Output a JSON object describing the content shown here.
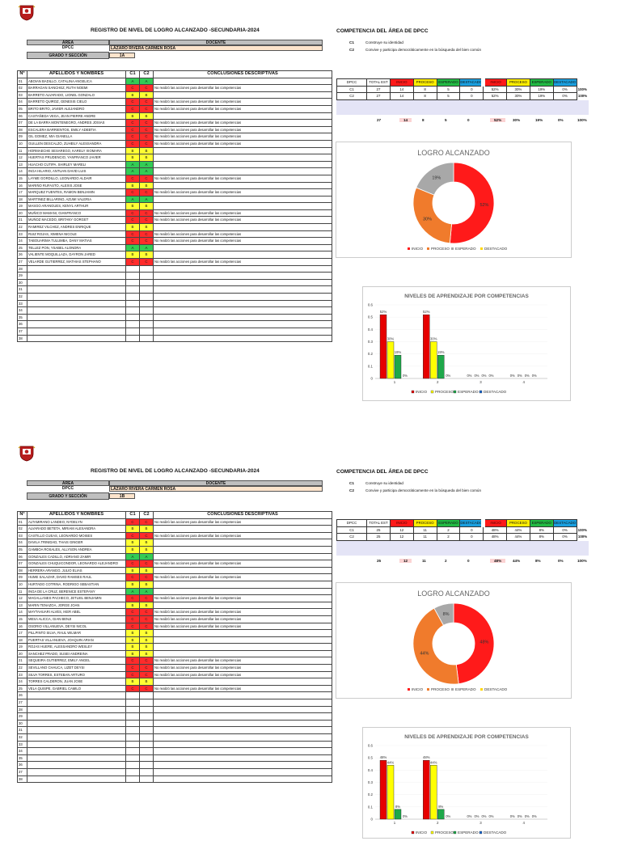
{
  "colors": {
    "inicio": "#ff1a1a",
    "proceso": "#f07b2c",
    "esperado": "#a8a8a8",
    "destacado": "#ffd700",
    "bar_inicio": "#e60000",
    "bar_proceso": "#ffff00",
    "bar_esperado": "#1ea84a",
    "bar_destacado": "#1a66cc"
  },
  "common": {
    "title": "REGISTRO DE NIVEL DE LOGRO ALCANZADO -SECUNDARIA-2024",
    "area_label": "ÁREA",
    "docente_label": "DOCENTE",
    "area_value": "DPCC",
    "docente_value": "LÁZARO RIVERA CARMEN ROSA",
    "grado_label": "GRADO Y SECCIÓN",
    "competencia_title": "COMPETENCIA DEL ÁREA DE DPCC",
    "competencias": [
      {
        "code": "C1",
        "desc": "Construye su identidad"
      },
      {
        "code": "C2",
        "desc": "Convive y participa democráticamente en la búsqueda del bien común"
      }
    ],
    "th": {
      "num": "N°",
      "nombres": "APELLIDOS Y NOMBRES",
      "c1": "C1",
      "c2": "C2",
      "conclusiones": "CONCLUSIONES DESCRIPTIVAS"
    },
    "sum_head": [
      "DPCC",
      "TOTAL EST",
      "INICIO",
      "PROCESO",
      "ESPERADO",
      "DESTACADO",
      "INICIO",
      "PROCESO",
      "ESPERADO",
      "DESTACADO"
    ],
    "donut_title": "LOGRO ALCANZADO",
    "legend": [
      "INICIO",
      "PROCESO",
      "ESPERADO",
      "DESTACADO"
    ],
    "bar_title": "NIVELES DE APRENDIZAJE POR COMPETENCIAS",
    "bar_yticks": [
      "0.6",
      "0.5",
      "0.4",
      "0.3",
      "0.2",
      "0.1",
      "0"
    ],
    "bar_xticks": [
      "1",
      "2",
      "3",
      "4"
    ]
  },
  "sections": [
    {
      "grado": "1A",
      "students": [
        {
          "n": "01",
          "name": "ABOIAN BADILLO, CATALINA ANGELICA",
          "c1": "A",
          "c2": "A",
          "concl": ""
        },
        {
          "n": "02",
          "name": "BARRAGAN SANCHEZ, RUTH NOEMI",
          "c1": "C",
          "c2": "C",
          "concl": "No realizó las acciones para desarrollar las competencias"
        },
        {
          "n": "03",
          "name": "BARRETO ALVARADO, LIONEL GONZALO",
          "c1": "B",
          "c2": "B",
          "concl": ""
        },
        {
          "n": "04",
          "name": "BARRETO QUIROZ, GENESIS CIELO",
          "c1": "C",
          "c2": "C",
          "concl": "No realizó las acciones para desarrollar las competencias"
        },
        {
          "n": "05",
          "name": "BRITO BRITO, JAVIER ALEJANDRO",
          "c1": "C",
          "c2": "C",
          "concl": "No realizó las acciones para desarrollar las competencias"
        },
        {
          "n": "06",
          "name": "CASTAÑEDA VEGA, JEAN PIERRE ANDRE",
          "c1": "B",
          "c2": "B",
          "concl": ""
        },
        {
          "n": "07",
          "name": "DE LA BARRA MONTENEGRO, ANDRES JOSIAS",
          "c1": "C",
          "c2": "C",
          "concl": "No realizó las acciones para desarrollar las competencias"
        },
        {
          "n": "08",
          "name": "ESCALERA BARRIENTOS, EMILY ADEBTIA",
          "c1": "C",
          "c2": "C",
          "concl": "No realizó las acciones para desarrollar las competencias"
        },
        {
          "n": "09",
          "name": "GIL GOMEZ, MIA GIANELLA",
          "c1": "C",
          "c2": "C",
          "concl": "No realizó las acciones para desarrollar las competencias"
        },
        {
          "n": "10",
          "name": "GUILLEN DESCALZO, ZUHEILY ALESSANDRA",
          "c1": "C",
          "c2": "C",
          "concl": "No realizó las acciones para desarrollar las competencias"
        },
        {
          "n": "11",
          "name": "HORMAECHE SESAREGO, KARELY XIOMARA",
          "c1": "B",
          "c2": "B",
          "concl": ""
        },
        {
          "n": "12",
          "name": "HUERTAS PRUDENCIO, YANFRANCO JAVIER",
          "c1": "B",
          "c2": "B",
          "concl": ""
        },
        {
          "n": "13",
          "name": "HUACHO CUTIPA, SHIRLEY MARELI",
          "c1": "A",
          "c2": "A",
          "concl": ""
        },
        {
          "n": "14",
          "name": "INGA HILARIO, ANTUAN DAVID LUIS",
          "c1": "A",
          "c2": "A",
          "concl": ""
        },
        {
          "n": "15",
          "name": "LAYME GORDILLO, LEONARDO ALDAIR",
          "c1": "C",
          "c2": "C",
          "concl": "No realizó las acciones para desarrollar las competencias"
        },
        {
          "n": "16",
          "name": "MARIÑO RUFASTO, ALEXIS JOSE",
          "c1": "B",
          "c2": "B",
          "concl": ""
        },
        {
          "n": "17",
          "name": "MARQUEZ FUENTES, RAMON BENJAMIN",
          "c1": "C",
          "c2": "C",
          "concl": "No realizó las acciones para desarrollar las competencias"
        },
        {
          "n": "18",
          "name": "MARTINEZ BILLARINO, AZUMI VALERIA",
          "c1": "A",
          "c2": "A",
          "concl": ""
        },
        {
          "n": "19",
          "name": "MASGO ARANGUES, KENYL ARTHUR",
          "c1": "B",
          "c2": "B",
          "concl": ""
        },
        {
          "n": "20",
          "name": "MUÑICO MAMANI, GIANFRANCO",
          "c1": "C",
          "c2": "C",
          "concl": "No realizó las acciones para desarrollar las competencias"
        },
        {
          "n": "21",
          "name": "MUÑOZ MACEDO, BRITANY GORGET",
          "c1": "C",
          "c2": "C",
          "concl": "No realizó las acciones para desarrollar las competencias"
        },
        {
          "n": "22",
          "name": "RAMIREZ VILCHEZ, ANDRES ENRIQUE",
          "c1": "B",
          "c2": "B",
          "concl": ""
        },
        {
          "n": "23",
          "name": "RUIZ ROJAS, XIMENA NICOLE",
          "c1": "C",
          "c2": "C",
          "concl": "No realizó las acciones para desarrollar las competencias"
        },
        {
          "n": "24",
          "name": "TABOUARIMA TULUMBA, DANY MATIAS",
          "c1": "C",
          "c2": "C",
          "concl": "No realizó las acciones para desarrollar las competencias"
        },
        {
          "n": "25",
          "name": "TELLEZ PON, YSABEL ALONDRA",
          "c1": "A",
          "c2": "A",
          "concl": ""
        },
        {
          "n": "26",
          "name": "VALIENTE MOQUILLAZA, DAYRON JARED",
          "c1": "B",
          "c2": "B",
          "concl": ""
        },
        {
          "n": "27",
          "name": "VELARDE GUTIERREZ, MATHIAS STEPHANO",
          "c1": "C",
          "c2": "C",
          "concl": "No realizó las acciones para desarrollar las competencias"
        }
      ],
      "empty_rows": [
        "28",
        "29",
        "30",
        "31",
        "32",
        "33",
        "34",
        "35",
        "36",
        "37",
        "38"
      ],
      "summary": [
        {
          "comp": "C1",
          "total": "27",
          "i": "14",
          "p": "8",
          "e": "5",
          "d": "0",
          "pi": "52%",
          "pp": "30%",
          "pe": "19%",
          "pd": "0%",
          "t": "100%"
        },
        {
          "comp": "C2",
          "total": "27",
          "i": "14",
          "p": "8",
          "e": "5",
          "d": "0",
          "pi": "52%",
          "pp": "30%",
          "pe": "19%",
          "pd": "0%",
          "t": "100%"
        }
      ],
      "totals": {
        "total": "27",
        "i": "14",
        "p": "8",
        "e": "5",
        "d": "0",
        "pi": "52%",
        "pp": "30%",
        "pe": "19%",
        "pd": "0%",
        "t": "100%"
      },
      "chart_data": [
        {
          "type": "pie",
          "title": "LOGRO ALCANZADO",
          "categories": [
            "INICIO",
            "PROCESO",
            "ESPERADO",
            "DESTACADO"
          ],
          "values": [
            52,
            30,
            19,
            0
          ],
          "labels": [
            "52%",
            "30%",
            "19%",
            ""
          ]
        },
        {
          "type": "bar",
          "title": "NIVELES DE APRENDIZAJE POR COMPETENCIAS",
          "categories": [
            "1",
            "2",
            "3",
            "4"
          ],
          "ylim": [
            0,
            0.6
          ],
          "series": [
            {
              "name": "INICIO",
              "values": [
                0.52,
                0.52,
                0,
                0
              ],
              "labels": [
                "52%",
                "52%",
                "0%",
                "0%"
              ]
            },
            {
              "name": "PROCESO",
              "values": [
                0.3,
                0.3,
                0,
                0
              ],
              "labels": [
                "30%",
                "30%",
                "0%",
                "0%"
              ]
            },
            {
              "name": "ESPERADO",
              "values": [
                0.19,
                0.19,
                0,
                0
              ],
              "labels": [
                "19%",
                "19%",
                "0%",
                "0%"
              ]
            },
            {
              "name": "DESTACADO",
              "values": [
                0,
                0,
                0,
                0
              ],
              "labels": [
                "0%",
                "0%",
                "0%",
                "0%"
              ]
            }
          ]
        }
      ]
    },
    {
      "grado": "1B",
      "students": [
        {
          "n": "01",
          "name": "ALTAMIRANO LANDEO, NYDELYN",
          "c1": "C",
          "c2": "C",
          "concl": "No realizó las acciones para desarrollar las competencias"
        },
        {
          "n": "02",
          "name": "ALVARADO BETETA, MIRIAM ALEXANDRA",
          "c1": "B",
          "c2": "B",
          "concl": ""
        },
        {
          "n": "03",
          "name": "CASTILLO CUEAS, LEONARDO MOISES",
          "c1": "C",
          "c2": "C",
          "concl": "No realizó las acciones para desarrollar las competencias"
        },
        {
          "n": "04",
          "name": "DAVILA TRINIDAD, THAIS GINGER",
          "c1": "B",
          "c2": "B",
          "concl": ""
        },
        {
          "n": "05",
          "name": "GAMBOA ROSALES, ALLYSON ANDREA",
          "c1": "B",
          "c2": "B",
          "concl": ""
        },
        {
          "n": "06",
          "name": "GONZALES CADILLO, ADRIANO ZAMIR",
          "c1": "A",
          "c2": "A",
          "concl": ""
        },
        {
          "n": "07",
          "name": "GONZALES CHUQUICONDOR, LEONARDO ALEJANDRO",
          "c1": "C",
          "c2": "C",
          "concl": "No realizó las acciones para desarrollar las competencias"
        },
        {
          "n": "08",
          "name": "HERRERA ARANGO, JULIO ELIAS",
          "c1": "B",
          "c2": "B",
          "concl": ""
        },
        {
          "n": "09",
          "name": "HUME SALAZAR, DAVID RAMSES RAUL",
          "c1": "C",
          "c2": "C",
          "concl": "No realizó las acciones para desarrollar las competencias"
        },
        {
          "n": "10",
          "name": "HURTADO COTRINA, RODRIGO SEBASTIAN",
          "c1": "B",
          "c2": "B",
          "concl": ""
        },
        {
          "n": "11",
          "name": "INGA DE LA CRUZ, BERENICE ESTEFANY",
          "c1": "A",
          "c2": "A",
          "concl": ""
        },
        {
          "n": "12",
          "name": "MAGALLANES PACHECO, JETLIEL BENJAMIN",
          "c1": "C",
          "c2": "C",
          "concl": "No realizó las acciones para desarrollar las competencias"
        },
        {
          "n": "13",
          "name": "MARIN TENAZOA, JORGE JOAN",
          "c1": "B",
          "c2": "B",
          "concl": ""
        },
        {
          "n": "14",
          "name": "MAYTAHUARI ALVES, IKER ABEL",
          "c1": "C",
          "c2": "C",
          "concl": "No realizó las acciones para desarrollar las competencias"
        },
        {
          "n": "15",
          "name": "MESA ALICCA, GIAN BENJI",
          "c1": "C",
          "c2": "C",
          "concl": "No realizó las acciones para desarrollar las competencias"
        },
        {
          "n": "16",
          "name": "OSORIO VILLANUEVA, DEYSI NICOL",
          "c1": "C",
          "c2": "C",
          "concl": "No realizó las acciones para desarrollar las competencias"
        },
        {
          "n": "17",
          "name": "PILLPINTO SILVA, RAUL WILMAR",
          "c1": "B",
          "c2": "B",
          "concl": ""
        },
        {
          "n": "18",
          "name": "PUERTAS VILLANUEVA, JOAQUIN ARIAN",
          "c1": "B",
          "c2": "B",
          "concl": ""
        },
        {
          "n": "19",
          "name": "ROJAS HUERE, ALESSANDRO WESLEY",
          "c1": "B",
          "c2": "B",
          "concl": ""
        },
        {
          "n": "20",
          "name": "SANCHEZ PRADO, SUSEI ANDREINA",
          "c1": "B",
          "c2": "B",
          "concl": ""
        },
        {
          "n": "21",
          "name": "SEQUEIRA GUTIERREZ, EMILY ANGEL",
          "c1": "C",
          "c2": "C",
          "concl": "No realizó las acciones para desarrollar las competencias"
        },
        {
          "n": "22",
          "name": "SEVILLANO CHAUCA, LIZET DEYSI",
          "c1": "C",
          "c2": "C",
          "concl": "No realizó las acciones para desarrollar las competencias"
        },
        {
          "n": "23",
          "name": "SILVA TORRES, ESTEBAN ARTURO",
          "c1": "C",
          "c2": "C",
          "concl": "No realizó las acciones para desarrollar las competencias"
        },
        {
          "n": "24",
          "name": "TORRES CALDERON, JUAN JOSE",
          "c1": "B",
          "c2": "B",
          "concl": ""
        },
        {
          "n": "25",
          "name": "VELA QUISPE, GABRIEL CAMILO",
          "c1": "C",
          "c2": "C",
          "concl": "No realizó las acciones para desarrollar las competencias"
        }
      ],
      "empty_rows": [
        "26",
        "27",
        "28",
        "29",
        "30",
        "31",
        "32",
        "33",
        "34",
        "35",
        "36",
        "37",
        "38"
      ],
      "summary": [
        {
          "comp": "C1",
          "total": "25",
          "i": "12",
          "p": "11",
          "e": "2",
          "d": "0",
          "pi": "48%",
          "pp": "44%",
          "pe": "8%",
          "pd": "0%",
          "t": "100%"
        },
        {
          "comp": "C2",
          "total": "25",
          "i": "12",
          "p": "11",
          "e": "2",
          "d": "0",
          "pi": "48%",
          "pp": "44%",
          "pe": "8%",
          "pd": "0%",
          "t": "100%"
        }
      ],
      "totals": {
        "total": "25",
        "i": "12",
        "p": "11",
        "e": "2",
        "d": "0",
        "pi": "48%",
        "pp": "44%",
        "pe": "8%",
        "pd": "0%",
        "t": "100%"
      },
      "chart_data": [
        {
          "type": "pie",
          "title": "LOGRO ALCANZADO",
          "categories": [
            "INICIO",
            "PROCESO",
            "ESPERADO",
            "DESTACADO"
          ],
          "values": [
            48,
            44,
            8,
            0
          ],
          "labels": [
            "48%",
            "44%",
            "8%",
            ""
          ]
        },
        {
          "type": "bar",
          "title": "NIVELES DE APRENDIZAJE POR COMPETENCIAS",
          "categories": [
            "1",
            "2",
            "3",
            "4"
          ],
          "ylim": [
            0,
            0.6
          ],
          "series": [
            {
              "name": "INICIO",
              "values": [
                0.48,
                0.48,
                0,
                0
              ],
              "labels": [
                "48%",
                "48%",
                "0%",
                "0%"
              ]
            },
            {
              "name": "PROCESO",
              "values": [
                0.44,
                0.44,
                0,
                0
              ],
              "labels": [
                "44%",
                "44%",
                "0%",
                "0%"
              ]
            },
            {
              "name": "ESPERADO",
              "values": [
                0.08,
                0.08,
                0,
                0
              ],
              "labels": [
                "8%",
                "8%",
                "0%",
                "0%"
              ]
            },
            {
              "name": "DESTACADO",
              "values": [
                0,
                0,
                0,
                0
              ],
              "labels": [
                "0%",
                "0%",
                "0%",
                "0%"
              ]
            }
          ]
        }
      ]
    }
  ]
}
